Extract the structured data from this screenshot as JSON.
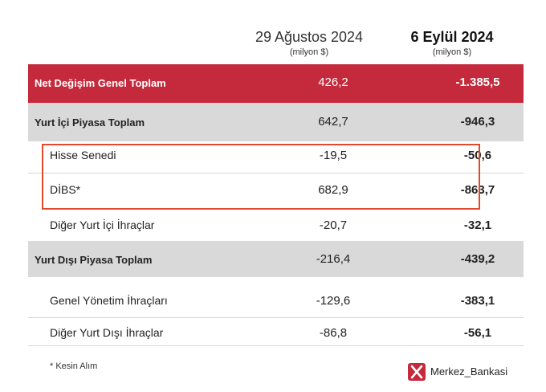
{
  "header": {
    "col1_date": "29 Ağustos 2024",
    "col1_unit": "(milyon $)",
    "col2_date": "6 Eylül 2024",
    "col2_unit": "(milyon $)"
  },
  "rows": [
    {
      "label": "Net Değişim Genel Toplam",
      "v1": "426,2",
      "v2": "-1.385,5"
    },
    {
      "label": "Yurt İçi Piyasa Toplam",
      "v1": "642,7",
      "v2": "-946,3"
    },
    {
      "label": "Hisse Senedi",
      "v1": "-19,5",
      "v2": "-50,6"
    },
    {
      "label": "DİBS*",
      "v1": "682,9",
      "v2": "-863,7"
    },
    {
      "label": "Diğer Yurt İçi İhraçlar",
      "v1": "-20,7",
      "v2": "-32,1"
    },
    {
      "label": "Yurt Dışı Piyasa Toplam",
      "v1": "-216,4",
      "v2": "-439,2"
    },
    {
      "label": "Genel Yönetim İhraçları",
      "v1": "-129,6",
      "v2": "-383,1"
    },
    {
      "label": "Diğer Yurt Dışı İhraçlar",
      "v1": "-86,8",
      "v2": "-56,1"
    }
  ],
  "footnote": "* Kesin Alım",
  "brand": {
    "icon": "x-logo-icon",
    "handle": "Merkez_Bankasi"
  },
  "colors": {
    "accent_red": "#c42a3c",
    "band_grey": "#d9d9d9",
    "highlight_border": "#e04a2a"
  }
}
